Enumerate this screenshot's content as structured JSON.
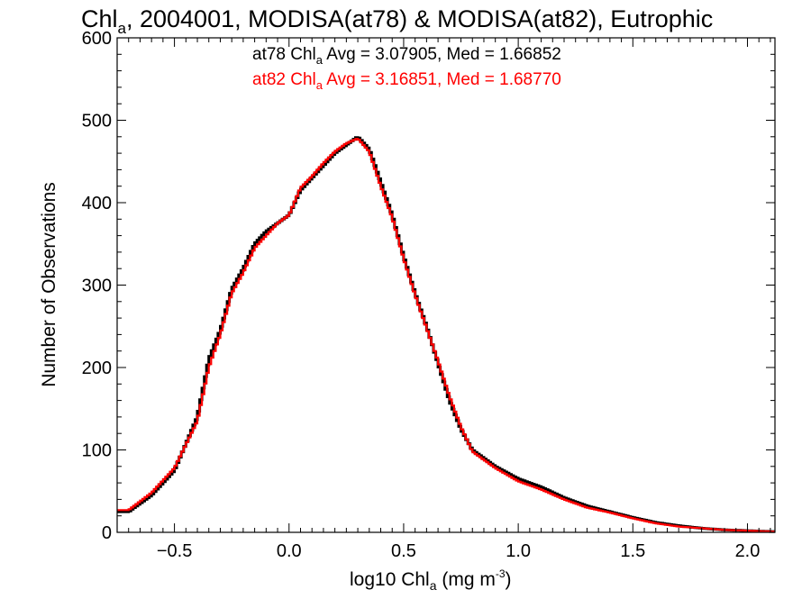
{
  "chart_data": {
    "type": "line",
    "title": {
      "pre": "Chl",
      "sub": "a",
      "post": ", 2004001, MODISA(at78) & MODISA(at82), Eutrophic"
    },
    "xlabel": {
      "pre": "log10 Chl",
      "sub": "a",
      "mid": " (mg m",
      "sup": "-3",
      "post": ")"
    },
    "ylabel": "Number of Observations",
    "xlim": [
      -0.75,
      2.12
    ],
    "ylim": [
      0,
      600
    ],
    "xticks": [
      -0.5,
      0.0,
      0.5,
      1.0,
      1.5,
      2.0
    ],
    "xtick_labels": [
      "−0.5",
      "0.0",
      "0.5",
      "1.0",
      "1.5",
      "2.0"
    ],
    "yticks": [
      0,
      100,
      200,
      300,
      400,
      500,
      600
    ],
    "ytick_labels": [
      "0",
      "100",
      "200",
      "300",
      "400",
      "500",
      "600"
    ],
    "grid": false,
    "legend_position": "top-center",
    "annotations": [
      {
        "pre": "at78 Chl",
        "sub": "a",
        "post": " Avg = 3.07905, Med = 1.66852",
        "color": "#000000"
      },
      {
        "pre": "at82 Chl",
        "sub": "a",
        "post": " Avg = 3.16851, Med = 1.68770",
        "color": "#ff0000"
      }
    ],
    "x": [
      -0.7,
      -0.6,
      -0.5,
      -0.4,
      -0.35,
      -0.3,
      -0.25,
      -0.2,
      -0.15,
      -0.1,
      -0.05,
      0.0,
      0.05,
      0.1,
      0.15,
      0.2,
      0.25,
      0.3,
      0.35,
      0.4,
      0.45,
      0.5,
      0.55,
      0.6,
      0.65,
      0.7,
      0.75,
      0.8,
      0.9,
      1.0,
      1.1,
      1.2,
      1.3,
      1.4,
      1.5,
      1.6,
      1.7,
      1.8,
      1.9,
      2.0,
      2.1
    ],
    "series": [
      {
        "name": "at78",
        "color": "#000000",
        "values": [
          25,
          45,
          75,
          140,
          210,
          245,
          295,
          320,
          350,
          365,
          375,
          385,
          415,
          430,
          445,
          460,
          470,
          480,
          465,
          425,
          385,
          335,
          290,
          250,
          205,
          160,
          125,
          100,
          80,
          65,
          55,
          42,
          32,
          25,
          18,
          12,
          8,
          5,
          3,
          2,
          1
        ]
      },
      {
        "name": "at82",
        "color": "#ff0000",
        "values": [
          27,
          48,
          78,
          135,
          200,
          240,
          290,
          315,
          345,
          360,
          375,
          385,
          418,
          432,
          448,
          462,
          472,
          478,
          462,
          420,
          382,
          332,
          288,
          248,
          208,
          165,
          128,
          98,
          78,
          62,
          52,
          40,
          30,
          24,
          17,
          11,
          7,
          5,
          3,
          2,
          1
        ]
      }
    ]
  }
}
